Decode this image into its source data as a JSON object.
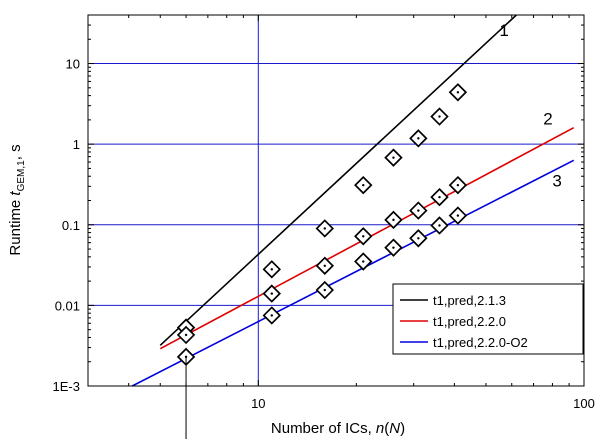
{
  "chart_data": {
    "type": "scatter",
    "xlabel": {
      "prefix": "Number of ICs, ",
      "n": "n",
      "open": "(",
      "N": "N",
      "close": ")"
    },
    "ylabel": {
      "prefix": "Runtime ",
      "t": "t",
      "sub": "GEM,1",
      "suffix": ", s"
    },
    "xscale": "log",
    "yscale": "log",
    "xlim": [
      3,
      100
    ],
    "ylim": [
      0.001,
      40
    ],
    "x_ticks": [
      {
        "value": 10,
        "label": "10"
      },
      {
        "value": 100,
        "label": "100"
      }
    ],
    "y_ticks": [
      {
        "value": 0.001,
        "label": "1E-3"
      },
      {
        "value": 0.01,
        "label": "0.01"
      },
      {
        "value": 0.1,
        "label": "0.1"
      },
      {
        "value": 1,
        "label": "1"
      },
      {
        "value": 10,
        "label": "10"
      }
    ],
    "grid": {
      "x_values": [
        10
      ],
      "y_values": [
        0.01,
        0.1,
        1,
        10
      ],
      "color": "#1a1acc"
    },
    "reference_marker_x": 6,
    "legend_position": "bottom-right",
    "series": [
      {
        "name": "t1,pred,2.1.3",
        "label": "1",
        "label_at": {
          "x": 55,
          "y": 22
        },
        "color": "#000000",
        "line": {
          "x": [
            5,
            62
          ],
          "y": [
            0.0032,
            40
          ]
        },
        "points": {
          "x": [
            6,
            11,
            16,
            21,
            26,
            31,
            36,
            41
          ],
          "y": [
            0.0053,
            0.028,
            0.09,
            0.31,
            0.68,
            1.18,
            2.2,
            4.4
          ]
        }
      },
      {
        "name": "t1,pred,2.2.0",
        "label": "2",
        "label_at": {
          "x": 75,
          "y": 1.75
        },
        "color": "#e00000",
        "line": {
          "x": [
            5,
            93
          ],
          "y": [
            0.0029,
            1.6
          ]
        },
        "points": {
          "x": [
            6,
            11,
            16,
            21,
            26,
            31,
            36,
            41
          ],
          "y": [
            0.0043,
            0.014,
            0.031,
            0.072,
            0.115,
            0.15,
            0.22,
            0.31
          ]
        }
      },
      {
        "name": "t1,pred,2.2.0-O2",
        "label": "3",
        "label_at": {
          "x": 80,
          "y": 0.3
        },
        "color": "#0000dd",
        "line": {
          "x": [
            4.1,
            93
          ],
          "y": [
            0.001,
            0.63
          ]
        },
        "points": {
          "x": [
            6,
            11,
            16,
            21,
            26,
            31,
            36,
            41
          ],
          "y": [
            0.0023,
            0.0075,
            0.0155,
            0.035,
            0.052,
            0.068,
            0.098,
            0.13
          ]
        }
      }
    ]
  }
}
